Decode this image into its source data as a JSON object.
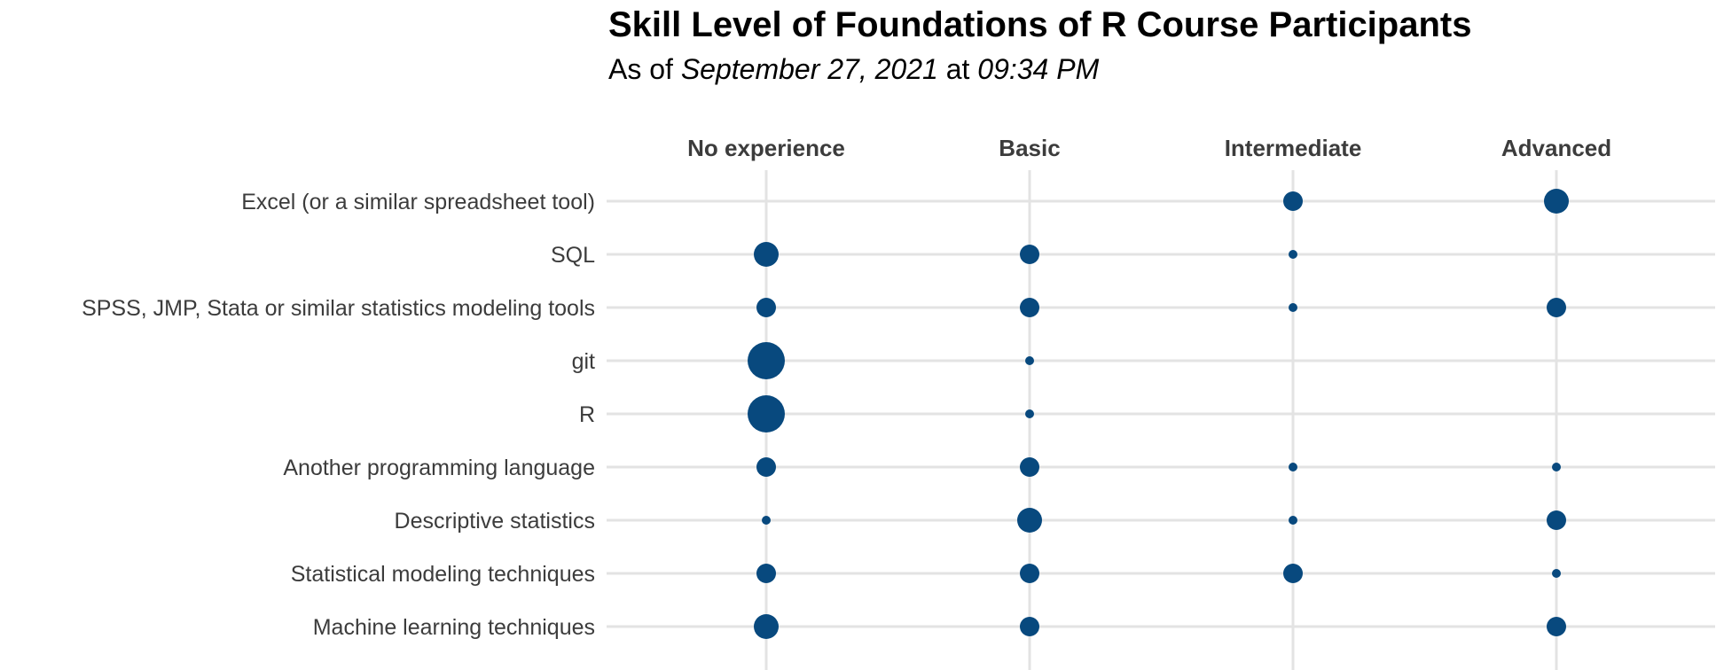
{
  "chart_data": {
    "type": "scatter",
    "title": "Skill Level of Foundations of R Course Participants",
    "subtitle": {
      "prefix": "As of",
      "date": "September 27, 2021",
      "connector": "at",
      "time": "09:34 PM"
    },
    "x_categories": [
      "No experience",
      "Basic",
      "Intermediate",
      "Advanced"
    ],
    "x_axis_position": "top",
    "y_categories": [
      "Excel (or a similar spreadsheet tool)",
      "SQL",
      "SPSS, JMP, Stata or similar statistics modeling tools",
      "git",
      "R",
      "Another programming language",
      "Descriptive statistics",
      "Statistical modeling techniques",
      "Machine learning techniques"
    ],
    "values": [
      [
        0,
        0,
        2,
        3
      ],
      [
        3,
        2,
        1,
        0
      ],
      [
        2,
        2,
        1,
        2
      ],
      [
        5,
        1,
        0,
        0
      ],
      [
        5,
        1,
        0,
        0
      ],
      [
        2,
        2,
        1,
        1
      ],
      [
        1,
        3,
        1,
        2
      ],
      [
        2,
        2,
        2,
        1
      ],
      [
        3,
        2,
        0,
        2
      ]
    ],
    "grid": true,
    "legend": "none",
    "colors": {
      "point": "#08497e",
      "grid": "#e3e3e3",
      "label": "#3c3c3c",
      "title": "#000000"
    }
  }
}
